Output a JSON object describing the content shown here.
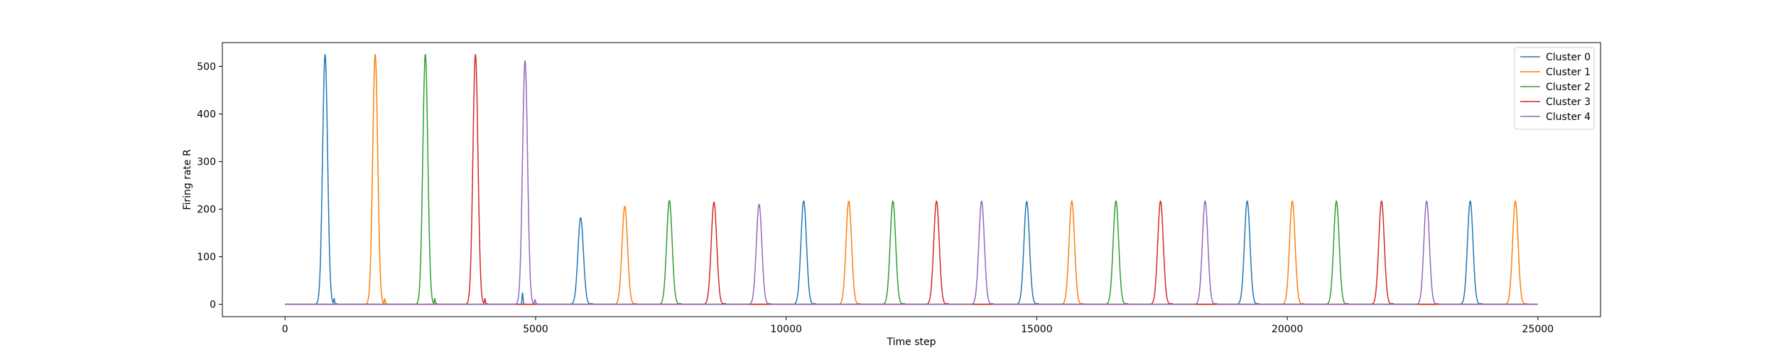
{
  "chart_data": {
    "type": "line",
    "title": "",
    "xlabel": "Time step",
    "ylabel": "Firing rate R",
    "xlim": [
      -1250,
      26250
    ],
    "ylim": [
      -26,
      550
    ],
    "xticks": [
      0,
      5000,
      10000,
      15000,
      20000,
      25000
    ],
    "yticks": [
      0,
      100,
      200,
      300,
      400,
      500
    ],
    "grid": false,
    "legend_position": "top-right",
    "series": [
      {
        "name": "Cluster 0",
        "color": "#1f77b4",
        "peaks": [
          [
            800,
            525
          ],
          [
            5900,
            182
          ],
          [
            10350,
            217
          ],
          [
            14800,
            216
          ],
          [
            19200,
            217
          ],
          [
            23650,
            217
          ]
        ],
        "minor_spikes": [
          [
            980,
            12
          ],
          [
            4740,
            24
          ]
        ]
      },
      {
        "name": "Cluster 1",
        "color": "#ff7f0e",
        "peaks": [
          [
            1800,
            525
          ],
          [
            6780,
            206
          ],
          [
            11250,
            217
          ],
          [
            15700,
            217
          ],
          [
            20100,
            217
          ],
          [
            24550,
            217
          ]
        ],
        "minor_spikes": [
          [
            1990,
            12
          ]
        ]
      },
      {
        "name": "Cluster 2",
        "color": "#2ca02c",
        "peaks": [
          [
            2800,
            525
          ],
          [
            7670,
            218
          ],
          [
            12130,
            217
          ],
          [
            16580,
            217
          ],
          [
            20980,
            217
          ]
        ],
        "minor_spikes": [
          [
            2990,
            12
          ]
        ]
      },
      {
        "name": "Cluster 3",
        "color": "#d62728",
        "peaks": [
          [
            3800,
            525
          ],
          [
            8560,
            215
          ],
          [
            13000,
            217
          ],
          [
            17470,
            217
          ],
          [
            21880,
            217
          ]
        ],
        "minor_spikes": [
          [
            3990,
            12
          ]
        ]
      },
      {
        "name": "Cluster 4",
        "color": "#9467bd",
        "peaks": [
          [
            4790,
            512
          ],
          [
            9460,
            210
          ],
          [
            13900,
            217
          ],
          [
            18360,
            217
          ],
          [
            22780,
            217
          ]
        ],
        "minor_spikes": [
          [
            4990,
            10
          ]
        ]
      }
    ]
  }
}
